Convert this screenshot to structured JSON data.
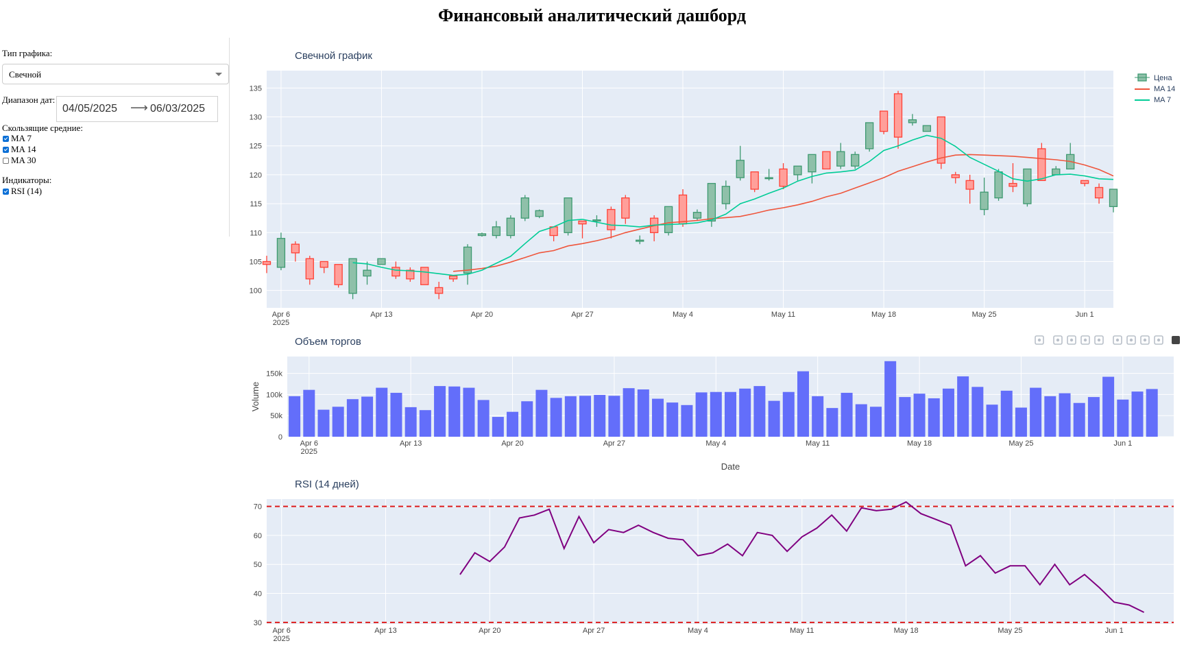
{
  "page_title": "Финансовый аналитический дашборд",
  "sidebar": {
    "chart_type_label": "Тип графика:",
    "chart_type_value": "Свечной",
    "date_range_label": "Диапазон дат:",
    "date_start": "04/05/2025",
    "date_end": "06/03/2025",
    "date_arrow": "⟶",
    "ma_label": "Скользящие средние:",
    "ma_options": [
      {
        "label": "MA 7",
        "checked": true
      },
      {
        "label": "MA 14",
        "checked": true
      },
      {
        "label": "MA 30",
        "checked": false
      }
    ],
    "indicators_label": "Индикаторы:",
    "indicator_options": [
      {
        "label": "RSI (14)",
        "checked": true
      }
    ]
  },
  "modebar_icons": [
    "camera-icon",
    "zoom-icon",
    "pan-icon",
    "box-select-icon",
    "lasso-icon",
    "zoom-in-icon",
    "zoom-out-icon",
    "autoscale-icon",
    "reset-axes-icon",
    "plotly-logo-icon"
  ],
  "colors": {
    "plot_bg": "#e5ecf6",
    "grid": "#ffffff",
    "increasing": "#3d9970",
    "increasing_fill": "#8fc0a9",
    "decreasing": "#ff4136",
    "decreasing_fill": "#ff9f9a",
    "ma14": "#ef553b",
    "ma7": "#00cc96",
    "volume": "#636efa",
    "rsi": "#800080",
    "rsi_threshold": "#dd1c1c"
  },
  "chart_data": [
    {
      "id": "candles",
      "type": "candlestick",
      "title": "Свечной график",
      "x_start": "2025-04-05",
      "x_range": [
        "2025-04-05",
        "2025-06-03"
      ],
      "ylim": [
        97,
        138
      ],
      "y_ticks": [
        100,
        105,
        110,
        115,
        120,
        125,
        130,
        135
      ],
      "x_tick_labels": [
        "Apr 6",
        "Apr 13",
        "Apr 20",
        "Apr 27",
        "May 4",
        "May 11",
        "May 18",
        "May 25",
        "Jun 1"
      ],
      "x_year_label": "2025",
      "legend": [
        "Цена",
        "MA 14",
        "MA 7"
      ],
      "ohlc": [
        [
          105,
          106,
          103,
          104.5
        ],
        [
          104,
          110,
          103.5,
          109
        ],
        [
          108,
          108.5,
          105,
          106.5
        ],
        [
          105.5,
          106,
          101,
          102
        ],
        [
          105,
          105,
          103,
          104
        ],
        [
          104.5,
          104.5,
          100.5,
          101
        ],
        [
          99.5,
          105.5,
          98.5,
          105.5
        ],
        [
          102.5,
          105,
          101,
          103.5
        ],
        [
          104.5,
          105.5,
          104.5,
          105.5
        ],
        [
          104,
          105,
          102,
          102.5
        ],
        [
          103.5,
          104,
          101.5,
          102
        ],
        [
          104,
          104,
          101,
          101
        ],
        [
          100.5,
          101.5,
          98.5,
          99.5
        ],
        [
          102.5,
          102.5,
          101.5,
          102
        ],
        [
          103,
          108,
          101,
          107.5
        ],
        [
          109.5,
          110,
          109.3,
          109.8
        ],
        [
          109.5,
          112,
          109,
          111
        ],
        [
          109.5,
          113,
          109,
          112.5
        ],
        [
          112.5,
          116.5,
          112,
          116
        ],
        [
          112.8,
          114,
          112.5,
          113.8
        ],
        [
          111,
          111,
          108.5,
          109.5
        ],
        [
          110,
          116,
          109.5,
          116
        ],
        [
          112,
          112,
          109,
          111.5
        ],
        [
          112,
          113,
          111,
          112.2
        ],
        [
          114,
          114.5,
          109,
          110.5
        ],
        [
          116,
          116.5,
          111.5,
          112.5
        ],
        [
          108.5,
          109.5,
          108,
          108.7
        ],
        [
          112.5,
          113,
          108.5,
          110
        ],
        [
          110,
          114.5,
          109.5,
          114.5
        ],
        [
          116.5,
          117.5,
          111,
          111.5
        ],
        [
          112.5,
          114,
          112,
          113.5
        ],
        [
          112,
          118.5,
          111,
          118.5
        ],
        [
          115,
          119,
          114,
          118
        ],
        [
          119.5,
          125,
          119,
          122.5
        ],
        [
          120.5,
          120.5,
          117,
          117.5
        ],
        [
          119.5,
          121,
          119,
          119.5
        ],
        [
          121,
          122,
          117.5,
          118
        ],
        [
          120,
          121.5,
          119,
          121.5
        ],
        [
          120.5,
          123.5,
          118.5,
          123.5
        ],
        [
          124,
          124,
          121,
          121
        ],
        [
          121.5,
          125.5,
          121,
          124
        ],
        [
          121.5,
          124,
          121,
          123.5
        ],
        [
          124.5,
          129,
          124,
          129
        ],
        [
          131,
          131,
          127,
          127.5
        ],
        [
          134,
          134.5,
          124.5,
          126.5
        ],
        [
          129,
          130.5,
          128.5,
          129.5
        ],
        [
          127.5,
          128.5,
          127.5,
          128.5
        ],
        [
          130,
          130,
          121,
          122
        ],
        [
          120,
          120.5,
          118.5,
          119.5
        ],
        [
          119,
          120,
          115,
          117.5
        ],
        [
          114,
          119.5,
          113,
          117
        ],
        [
          116,
          121,
          115.5,
          120.5
        ],
        [
          118.5,
          122,
          117,
          118
        ],
        [
          115,
          121,
          114.5,
          121
        ],
        [
          124.5,
          125.5,
          119,
          119
        ],
        [
          120,
          121.5,
          120,
          121
        ],
        [
          121,
          125.5,
          121,
          123.5
        ],
        [
          119,
          119,
          118,
          118.5
        ],
        [
          117.8,
          118.5,
          115,
          116
        ],
        [
          114.5,
          117.5,
          113.5,
          117.5
        ]
      ],
      "ma14": [
        null,
        null,
        null,
        null,
        null,
        null,
        null,
        null,
        null,
        null,
        null,
        null,
        null,
        103.3,
        103.5,
        103.8,
        104.2,
        104.9,
        105.7,
        106.5,
        106.9,
        107.7,
        108.1,
        108.6,
        109.2,
        110.0,
        110.6,
        111.2,
        111.7,
        111.9,
        112.1,
        112.4,
        112.6,
        112.8,
        113.3,
        113.9,
        114.3,
        114.8,
        115.4,
        116.2,
        116.8,
        117.7,
        118.6,
        119.5,
        120.6,
        121.4,
        122.2,
        122.9,
        123.4,
        123.5,
        123.4,
        123.3,
        123.2,
        123.0,
        122.8,
        122.6,
        122.3,
        121.7,
        120.9,
        119.8
      ],
      "ma7": [
        null,
        null,
        null,
        null,
        null,
        null,
        104.8,
        104.6,
        104.0,
        103.5,
        103.4,
        103.2,
        102.9,
        102.6,
        102.8,
        103.5,
        104.7,
        105.9,
        108.1,
        110.2,
        111.0,
        112.1,
        112.3,
        111.8,
        111.3,
        111.2,
        111.0,
        111.3,
        111.4,
        111.5,
        111.7,
        112.2,
        113.2,
        115.0,
        115.8,
        116.8,
        117.7,
        118.9,
        119.7,
        120.3,
        120.5,
        120.8,
        122.3,
        124.2,
        125.0,
        126.0,
        126.8,
        126.3,
        124.9,
        123.0,
        121.8,
        120.6,
        119.3,
        118.9,
        119.3,
        120.0,
        120.1,
        119.8,
        119.3,
        119.2
      ]
    },
    {
      "id": "volume",
      "type": "bar",
      "title": "Объем торгов",
      "x_start": "2025-04-05",
      "xlabel": "Date",
      "ylabel": "Volume",
      "ylim": [
        0,
        190000
      ],
      "y_ticks": [
        0,
        50000,
        100000,
        150000
      ],
      "y_tick_labels": [
        "0",
        "50k",
        "100k",
        "150k"
      ],
      "x_tick_labels": [
        "Apr 6",
        "Apr 13",
        "Apr 20",
        "Apr 27",
        "May 4",
        "May 11",
        "May 18",
        "May 25",
        "Jun 1"
      ],
      "x_year_label": "2025",
      "values": [
        96000,
        111000,
        64000,
        71000,
        89000,
        95000,
        116000,
        104000,
        70000,
        63000,
        120000,
        119000,
        116000,
        87000,
        47000,
        59000,
        84000,
        111000,
        92000,
        96000,
        97000,
        99000,
        97000,
        115000,
        112000,
        90000,
        81000,
        75000,
        105000,
        106000,
        106000,
        114000,
        120000,
        85000,
        106000,
        155000,
        96000,
        68000,
        104000,
        77000,
        71000,
        179000,
        94000,
        102000,
        91000,
        114000,
        143000,
        118000,
        76000,
        109000,
        69000,
        116000,
        96000,
        103000,
        80000,
        94000,
        142000,
        88000,
        107000,
        113000
      ]
    },
    {
      "id": "rsi",
      "type": "line",
      "title": "RSI (14 дней)",
      "x_start": "2025-04-05",
      "ylim": [
        29.5,
        72.5
      ],
      "y_ticks": [
        30,
        40,
        50,
        60,
        70
      ],
      "thresholds": [
        70,
        30
      ],
      "x_tick_labels": [
        "Apr 6",
        "Apr 13",
        "Apr 20",
        "Apr 27",
        "May 4",
        "May 11",
        "May 18",
        "May 25",
        "Jun 1"
      ],
      "x_year_label": "2025",
      "values": [
        null,
        null,
        null,
        null,
        null,
        null,
        null,
        null,
        null,
        null,
        null,
        null,
        null,
        46.5,
        54.0,
        51.0,
        56.0,
        66.0,
        67.0,
        69.0,
        55.5,
        66.5,
        57.5,
        62.0,
        61.0,
        63.5,
        61.0,
        59.0,
        58.5,
        53.0,
        54.0,
        57.0,
        53.0,
        61.0,
        60.0,
        54.5,
        59.5,
        62.5,
        67.0,
        61.5,
        69.5,
        68.5,
        69.0,
        71.5,
        67.5,
        65.5,
        63.5,
        49.5,
        53.0,
        47.0,
        49.5,
        49.5,
        43.0,
        50.0,
        43.0,
        46.5,
        42.0,
        37.0,
        36.0,
        33.5
      ]
    }
  ]
}
